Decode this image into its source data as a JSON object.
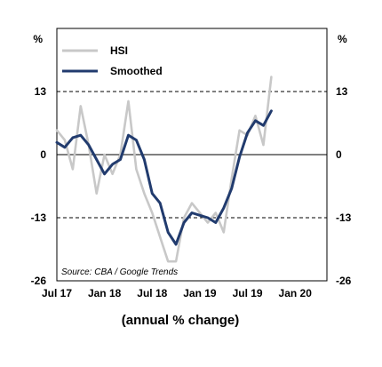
{
  "chart_data": {
    "type": "line",
    "left_unit": "%",
    "right_unit": "%",
    "caption": "(annual % change)",
    "source": "Source: CBA / Google Trends",
    "y_ticks": [
      "13",
      "0",
      "-13",
      "-26"
    ],
    "y_tick_values": [
      13,
      0,
      -13,
      -26
    ],
    "ylim": [
      -26,
      26
    ],
    "x_ticks": [
      "Jul 17",
      "Jan 18",
      "Jul 18",
      "Jan 19",
      "Jul 19",
      "Jan 20"
    ],
    "x_tick_months": [
      0,
      6,
      12,
      18,
      24,
      30
    ],
    "reference_lines": [
      13,
      -13
    ],
    "legend": [
      "HSI",
      "Smoothed"
    ],
    "colors": {
      "hsi": "#c8c8c8",
      "smoothed": "#213b6e"
    },
    "series": [
      {
        "name": "HSI",
        "x": [
          0,
          1,
          2,
          3,
          4,
          5,
          6,
          7,
          8,
          9,
          10,
          11,
          12,
          13,
          14,
          15,
          16,
          17,
          18,
          19,
          20,
          21,
          22,
          23,
          24,
          25,
          26,
          27,
          28,
          29,
          30
        ],
        "values": [
          5,
          3,
          -3,
          10,
          2,
          -8,
          0,
          -4,
          0,
          11,
          -3,
          -8,
          -12,
          -17,
          -22,
          -22,
          -13,
          -10,
          -12,
          -14,
          -12,
          -16,
          -5,
          5,
          4,
          8,
          2,
          16,
          null,
          null,
          null
        ]
      },
      {
        "name": "Smoothed",
        "x": [
          0,
          1,
          2,
          3,
          4,
          5,
          6,
          7,
          8,
          9,
          10,
          11,
          12,
          13,
          14,
          15,
          16,
          17,
          18,
          19,
          20,
          21,
          22,
          23,
          24,
          25,
          26,
          27
        ],
        "values": [
          2.5,
          1.5,
          3.5,
          4,
          2,
          -1,
          -4,
          -2,
          -1,
          4,
          3,
          -1,
          -8,
          -10,
          -16,
          -18.5,
          -14,
          -12,
          -12.5,
          -13,
          -14,
          -11,
          -7,
          -0.5,
          4.5,
          7,
          6,
          9
        ]
      }
    ]
  }
}
